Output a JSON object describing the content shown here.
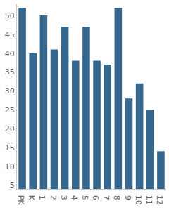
{
  "chart_data": {
    "type": "bar",
    "categories": [
      "PK",
      "K",
      "1",
      "2",
      "3",
      "4",
      "5",
      "6",
      "7",
      "8",
      "9",
      "10",
      "11",
      "12"
    ],
    "values": [
      52,
      40,
      50,
      41,
      47,
      38,
      47,
      38,
      37,
      52,
      28,
      32,
      25,
      14
    ],
    "color": "#36678f",
    "ylim": [
      4,
      53
    ],
    "yticks": [
      5,
      10,
      15,
      20,
      25,
      30,
      35,
      40,
      45,
      50
    ],
    "grid": false
  }
}
